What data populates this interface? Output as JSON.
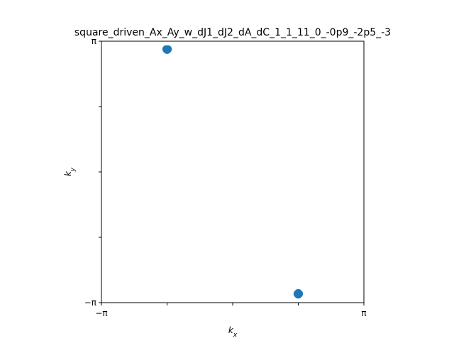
{
  "chart_data": {
    "type": "scatter",
    "title": "square_driven_Ax_Ay_w_dJ1_dJ2_dA_dC_1_1_11_0_-0p9_-2p5_-3",
    "xlabel": "k_x",
    "ylabel": "k_y",
    "xlim": [
      -3.14159,
      3.14159
    ],
    "ylim": [
      -3.14159,
      3.14159
    ],
    "grid": false,
    "x_ticks": [
      {
        "value": -3.14159,
        "label": "−π"
      },
      {
        "value": -1.5708,
        "label": ""
      },
      {
        "value": 0,
        "label": ""
      },
      {
        "value": 1.5708,
        "label": ""
      },
      {
        "value": 3.14159,
        "label": "π"
      }
    ],
    "y_ticks": [
      {
        "value": -3.14159,
        "label": "−π"
      },
      {
        "value": -1.5708,
        "label": ""
      },
      {
        "value": 0,
        "label": ""
      },
      {
        "value": 1.5708,
        "label": ""
      },
      {
        "value": 3.14159,
        "label": "π"
      }
    ],
    "series": [
      {
        "color": "#1f77b4",
        "points": [
          {
            "x": -1.59,
            "y": 2.95
          },
          {
            "x": -1.55,
            "y": 2.95
          },
          {
            "x": -1.57,
            "y": 2.93
          },
          {
            "x": 1.55,
            "y": -2.93
          },
          {
            "x": 1.59,
            "y": -2.93
          },
          {
            "x": 1.57,
            "y": -2.95
          },
          {
            "x": 1.57,
            "y": -2.91
          }
        ]
      }
    ]
  }
}
